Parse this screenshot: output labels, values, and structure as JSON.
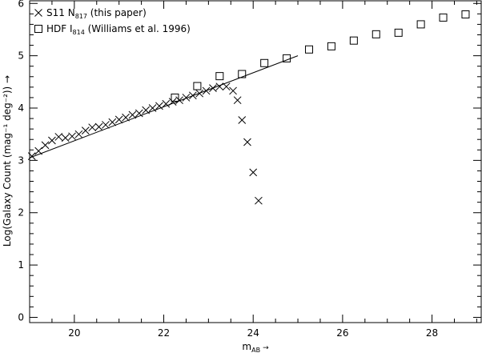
{
  "chart_data": {
    "type": "scatter",
    "xlabel": "m",
    "xlabel_sub": "AB",
    "xlabel_suffix": "→",
    "ylabel": "Log(Galaxy Count (mag⁻¹ deg⁻²)) →",
    "xlim": [
      19,
      29.1
    ],
    "ylim": [
      -0.1,
      6.05
    ],
    "xticks": [
      20,
      22,
      24,
      26,
      28
    ],
    "yticks": [
      0,
      1,
      2,
      3,
      4,
      5,
      6
    ],
    "grid": false,
    "legend_position": "top-left",
    "series": [
      {
        "name": "S11 N817 (this paper)",
        "legend": {
          "prefix": "S11 N",
          "sub": "817",
          "suffix": " (this paper)"
        },
        "marker": "x",
        "x": [
          19.05,
          19.2,
          19.35,
          19.5,
          19.65,
          19.8,
          19.95,
          20.1,
          20.25,
          20.4,
          20.55,
          20.7,
          20.85,
          21.0,
          21.15,
          21.3,
          21.45,
          21.6,
          21.75,
          21.9,
          22.05,
          22.2,
          22.35,
          22.5,
          22.65,
          22.8,
          22.95,
          23.1,
          23.25,
          23.4,
          23.55,
          23.65,
          23.75,
          23.87,
          24.0,
          24.12
        ],
        "y": [
          3.08,
          3.18,
          3.29,
          3.38,
          3.45,
          3.43,
          3.46,
          3.5,
          3.57,
          3.63,
          3.64,
          3.68,
          3.73,
          3.78,
          3.82,
          3.87,
          3.9,
          3.96,
          4.0,
          4.04,
          4.08,
          4.12,
          4.15,
          4.2,
          4.24,
          4.28,
          4.33,
          4.38,
          4.41,
          4.41,
          4.33,
          4.15,
          3.77,
          3.35,
          2.77,
          2.23
        ]
      },
      {
        "name": "HDF I814 (Williams et al. 1996)",
        "legend": {
          "prefix": "HDF I",
          "sub": "814",
          "suffix": " (Williams et al. 1996)"
        },
        "marker": "square",
        "x": [
          22.25,
          22.75,
          23.25,
          23.75,
          24.25,
          24.75,
          25.25,
          25.75,
          26.25,
          26.75,
          27.25,
          27.75,
          28.25,
          28.75
        ],
        "y": [
          4.2,
          4.42,
          4.61,
          4.65,
          4.86,
          4.95,
          5.12,
          5.18,
          5.29,
          5.41,
          5.44,
          5.6,
          5.73,
          5.79
        ]
      }
    ],
    "fit_line": {
      "x": [
        19.0,
        25.0
      ],
      "y": [
        3.05,
        5.0
      ]
    }
  }
}
